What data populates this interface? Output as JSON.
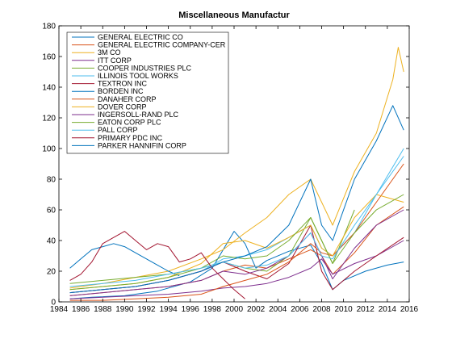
{
  "chart_data": {
    "type": "line",
    "title": "Miscellaneous Manufactur",
    "xlabel": "",
    "ylabel": "",
    "xlim": [
      1984,
      2016
    ],
    "ylim": [
      0,
      180
    ],
    "x_ticks": [
      "1984",
      "1986",
      "1988",
      "1990",
      "1992",
      "1994",
      "1996",
      "1998",
      "2000",
      "2002",
      "2004",
      "2006",
      "2008",
      "2010",
      "2012",
      "2014",
      "2016"
    ],
    "y_ticks": [
      "0",
      "20",
      "40",
      "60",
      "80",
      "100",
      "120",
      "140",
      "160",
      "180"
    ],
    "grid": false,
    "legend_position": "top-left",
    "series": [
      {
        "name": "GENERAL ELECTRIC CO",
        "color": "#0072BD",
        "x": [
          1985,
          1987,
          1990,
          1993,
          1996,
          1998,
          2000,
          2001,
          2002,
          2003,
          2005,
          2007,
          2008,
          2009,
          2010,
          2012,
          2014,
          2015.5
        ],
        "y": [
          2,
          3,
          4,
          7,
          13,
          22,
          46,
          38,
          22,
          27,
          33,
          37,
          25,
          8,
          14,
          20,
          24,
          26
        ]
      },
      {
        "name": "GENERAL ELECTRIC COMPANY-CER",
        "color": "#D95319",
        "x": [
          1985,
          1988,
          1991,
          1994,
          1997,
          1999,
          2001,
          2003,
          2005,
          2007,
          2008,
          2009,
          2011,
          2013,
          2015.5
        ],
        "y": [
          4,
          6,
          8,
          10,
          14,
          20,
          24,
          22,
          28,
          34,
          30,
          18,
          32,
          50,
          62
        ]
      },
      {
        "name": "3M CO",
        "color": "#EDB120",
        "x": [
          1985,
          1988,
          1991,
          1994,
          1997,
          1999,
          2001,
          2003,
          2005,
          2007,
          2008,
          2009,
          2011,
          2013,
          2014.5,
          2015,
          2015.5
        ],
        "y": [
          9,
          12,
          16,
          20,
          28,
          34,
          45,
          55,
          70,
          80,
          65,
          50,
          85,
          110,
          145,
          166,
          150
        ]
      },
      {
        "name": "ITT CORP",
        "color": "#7E2F8E",
        "x": [
          1985,
          1988,
          1991,
          1994,
          1997,
          1999,
          2001,
          2003,
          2005,
          2007,
          2008,
          2009,
          2011,
          2013,
          2015.5
        ],
        "y": [
          2,
          3,
          4,
          5,
          7,
          9,
          10,
          12,
          16,
          22,
          28,
          18,
          25,
          30,
          40
        ]
      },
      {
        "name": "COOPER INDUSTRIES PLC",
        "color": "#77AC30",
        "x": [
          1985,
          1988,
          1991,
          1994,
          1997,
          1999,
          2001,
          2003,
          2005,
          2007,
          2008,
          2009,
          2011
        ],
        "y": [
          12,
          14,
          16,
          18,
          22,
          26,
          22,
          20,
          30,
          55,
          40,
          25,
          60
        ]
      },
      {
        "name": "ILLINOIS TOOL WORKS",
        "color": "#4DBEEE",
        "x": [
          1985,
          1988,
          1991,
          1994,
          1997,
          1999,
          2001,
          2003,
          2005,
          2007,
          2008,
          2009,
          2011,
          2013,
          2015.5
        ],
        "y": [
          6,
          8,
          10,
          14,
          20,
          28,
          30,
          34,
          42,
          50,
          35,
          30,
          45,
          70,
          95
        ]
      },
      {
        "name": "TEXTRON INC",
        "color": "#A2142F",
        "x": [
          1985,
          1988,
          1991,
          1994,
          1997,
          1999,
          2001,
          2003,
          2005,
          2007,
          2008,
          2009,
          2011,
          2013,
          2015.5
        ],
        "y": [
          6,
          8,
          10,
          14,
          20,
          26,
          20,
          15,
          25,
          50,
          20,
          8,
          20,
          30,
          42
        ]
      },
      {
        "name": "BORDEN INC",
        "color": "#0072BD",
        "x": [
          1985,
          1986,
          1987,
          1988,
          1989,
          1990,
          1991,
          1992,
          1993,
          1994,
          1995
        ],
        "y": [
          22,
          28,
          34,
          36,
          38,
          36,
          32,
          28,
          24,
          20,
          17
        ]
      },
      {
        "name": "DANAHER CORP",
        "color": "#D95319",
        "x": [
          1985,
          1988,
          1991,
          1994,
          1997,
          1999,
          2001,
          2003,
          2005,
          2007,
          2008,
          2009,
          2011,
          2013,
          2015.5
        ],
        "y": [
          1,
          1,
          2,
          3,
          5,
          10,
          14,
          18,
          26,
          38,
          32,
          30,
          45,
          65,
          90
        ]
      },
      {
        "name": "DOVER CORP",
        "color": "#EDB120",
        "x": [
          1985,
          1988,
          1991,
          1994,
          1997,
          1999,
          2001,
          2003,
          2005,
          2007,
          2008,
          2009,
          2011,
          2013,
          2015.5
        ],
        "y": [
          8,
          10,
          12,
          16,
          25,
          38,
          40,
          35,
          42,
          50,
          35,
          30,
          55,
          70,
          65
        ]
      },
      {
        "name": "INGERSOLL-RAND PLC",
        "color": "#7E2F8E",
        "x": [
          1985,
          1988,
          1991,
          1994,
          1997,
          1999,
          2001,
          2003,
          2005,
          2007,
          2008,
          2009,
          2011,
          2013,
          2015.5
        ],
        "y": [
          4,
          6,
          8,
          10,
          14,
          20,
          18,
          22,
          30,
          45,
          30,
          15,
          35,
          50,
          60
        ]
      },
      {
        "name": "EATON CORP PLC",
        "color": "#77AC30",
        "x": [
          1985,
          1988,
          1991,
          1994,
          1997,
          1999,
          2001,
          2003,
          2005,
          2007,
          2008,
          2009,
          2011,
          2013,
          2015.5
        ],
        "y": [
          8,
          10,
          12,
          16,
          22,
          30,
          28,
          30,
          40,
          55,
          40,
          25,
          45,
          60,
          70
        ]
      },
      {
        "name": "PALL CORP",
        "color": "#4DBEEE",
        "x": [
          1985,
          1988,
          1991,
          1994,
          1997,
          1999,
          2001,
          2003,
          2005,
          2007,
          2008,
          2009,
          2011,
          2013,
          2015.5
        ],
        "y": [
          10,
          12,
          14,
          18,
          22,
          26,
          22,
          24,
          30,
          45,
          30,
          28,
          50,
          70,
          100
        ]
      },
      {
        "name": "PRIMARY PDC INC",
        "color": "#A2142F",
        "x": [
          1985,
          1986,
          1987,
          1988,
          1989,
          1990,
          1991,
          1992,
          1993,
          1994,
          1995,
          1996,
          1997,
          1998,
          1999,
          2000,
          2001
        ],
        "y": [
          14,
          18,
          26,
          38,
          42,
          46,
          40,
          34,
          38,
          36,
          26,
          28,
          32,
          22,
          15,
          8,
          2
        ]
      },
      {
        "name": "PARKER HANNIFIN CORP",
        "color": "#0072BD",
        "x": [
          1985,
          1988,
          1991,
          1994,
          1997,
          1999,
          2001,
          2003,
          2005,
          2007,
          2008,
          2009,
          2011,
          2013,
          2014.5,
          2015.5
        ],
        "y": [
          6,
          8,
          10,
          14,
          20,
          26,
          30,
          36,
          50,
          80,
          50,
          40,
          80,
          105,
          128,
          112
        ]
      }
    ]
  }
}
